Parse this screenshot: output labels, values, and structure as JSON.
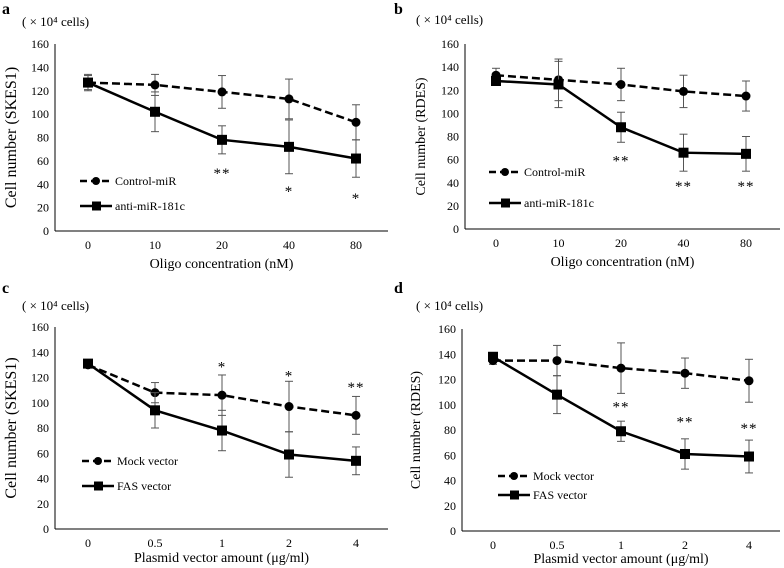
{
  "chart_data": [
    {
      "type": "line",
      "panel_label": "a",
      "unit_note": "( × 10⁴ cells)",
      "xlabel": "Oligo concentration (nM)",
      "ylabel": "Cell number (SKES1)",
      "categories": [
        "0",
        "10",
        "20",
        "40",
        "80"
      ],
      "ylim": [
        0,
        160
      ],
      "yticks": [
        0,
        20,
        40,
        60,
        80,
        100,
        120,
        140,
        160
      ],
      "legend_position": "left-middle",
      "series": [
        {
          "name": "Control-miR",
          "style": "dashed",
          "marker": "circle",
          "values": [
            127,
            125,
            119,
            113,
            93
          ],
          "errors": [
            7,
            9,
            14,
            17,
            15
          ]
        },
        {
          "name": "anti-miR-181c",
          "style": "solid",
          "marker": "square",
          "values": [
            127,
            102,
            78,
            72,
            62
          ],
          "errors": [
            6,
            17,
            12,
            23,
            16
          ]
        }
      ],
      "annotations": [
        {
          "category": "20",
          "text": "**",
          "y": 52
        },
        {
          "category": "40",
          "text": "*",
          "y": 37
        },
        {
          "category": "80",
          "text": "*",
          "y": 31
        }
      ]
    },
    {
      "type": "line",
      "panel_label": "b",
      "unit_note": "( × 10⁴ cells)",
      "xlabel": "Oligo concentration (nM)",
      "ylabel": "Cell number (RDES)",
      "categories": [
        "0",
        "10",
        "20",
        "40",
        "80"
      ],
      "ylim": [
        0,
        160
      ],
      "yticks": [
        0,
        20,
        40,
        60,
        80,
        100,
        120,
        140,
        160
      ],
      "legend_position": "left-middle",
      "series": [
        {
          "name": "Control-miR",
          "style": "dashed",
          "marker": "circle",
          "values": [
            133,
            129,
            125,
            119,
            115
          ],
          "errors": [
            6,
            18,
            14,
            14,
            13
          ]
        },
        {
          "name": "anti-miR-181c",
          "style": "solid",
          "marker": "square",
          "values": [
            128,
            125,
            88,
            66,
            65
          ],
          "errors": [
            3,
            20,
            13,
            16,
            15
          ]
        }
      ],
      "annotations": [
        {
          "category": "20",
          "text": "**",
          "y": 62
        },
        {
          "category": "40",
          "text": "**",
          "y": 40
        },
        {
          "category": "80",
          "text": "**",
          "y": 40
        }
      ]
    },
    {
      "type": "line",
      "panel_label": "c",
      "unit_note": "( × 10⁴ cells)",
      "xlabel": "Plasmid vector amount (μg/ml)",
      "ylabel": "Cell number (SKES1)",
      "categories": [
        "0",
        "0.5",
        "1",
        "2",
        "4"
      ],
      "ylim": [
        0,
        160
      ],
      "yticks": [
        0,
        20,
        40,
        60,
        80,
        100,
        120,
        140,
        160
      ],
      "legend_position": "left-middle",
      "series": [
        {
          "name": "Mock vector",
          "style": "dashed",
          "marker": "circle",
          "values": [
            130,
            108,
            106,
            97,
            90
          ],
          "errors": [
            2,
            8,
            16,
            20,
            15
          ]
        },
        {
          "name": "FAS vector",
          "style": "solid",
          "marker": "square",
          "values": [
            131,
            94,
            78,
            59,
            54
          ],
          "errors": [
            2,
            14,
            16,
            18,
            11
          ]
        }
      ],
      "annotations": [
        {
          "category": "1",
          "text": "*",
          "y": 131
        },
        {
          "category": "2",
          "text": "*",
          "y": 124
        },
        {
          "category": "4",
          "text": "**",
          "y": 115
        }
      ]
    },
    {
      "type": "line",
      "panel_label": "d",
      "unit_note": "( × 10⁴ cells)",
      "xlabel": "Plasmid vector amount (μg/ml)",
      "ylabel": "Cell number (RDES)",
      "categories": [
        "0",
        "0.5",
        "1",
        "2",
        "4"
      ],
      "ylim": [
        0,
        160
      ],
      "yticks": [
        0,
        20,
        40,
        60,
        80,
        100,
        120,
        140,
        160
      ],
      "legend_position": "left-middle",
      "series": [
        {
          "name": "Mock vector",
          "style": "dashed",
          "marker": "circle",
          "values": [
            135,
            135,
            129,
            125,
            119
          ],
          "errors": [
            3,
            12,
            20,
            12,
            17
          ]
        },
        {
          "name": "FAS vector",
          "style": "solid",
          "marker": "square",
          "values": [
            138,
            108,
            79,
            61,
            59
          ],
          "errors": [
            3,
            15,
            8,
            12,
            13
          ]
        }
      ],
      "annotations": [
        {
          "category": "1",
          "text": "**",
          "y": 101
        },
        {
          "category": "2",
          "text": "**",
          "y": 89
        },
        {
          "category": "4",
          "text": "**",
          "y": 84
        }
      ]
    }
  ]
}
